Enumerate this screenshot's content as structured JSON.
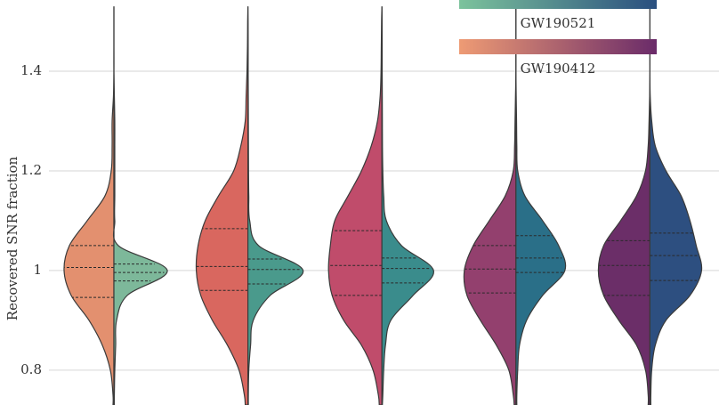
{
  "chart_data": {
    "type": "violin",
    "ylabel": "Recovered SNR fraction",
    "ylim": [
      0.73,
      1.543
    ],
    "yticks": [
      0.8,
      1.0,
      1.2,
      1.4
    ],
    "grid": true,
    "density_y": [
      0.73,
      0.75,
      0.8,
      0.85,
      0.9,
      0.95,
      1.0,
      1.05,
      1.1,
      1.15,
      1.2,
      1.25,
      1.3,
      1.35,
      1.4,
      1.45,
      1.5,
      1.53
    ],
    "series": [
      {
        "name": "GW190412",
        "side": "left",
        "colormap": [
          "#ee9b74",
          "#6a2b69"
        ],
        "colors": [
          "#e3906f",
          "#d9675f",
          "#c04c6b",
          "#93406e",
          "#6b2e68"
        ],
        "density": [
          [
            1,
            1,
            4,
            13,
            28,
            48,
            56,
            50,
            30,
            10,
            3,
            2,
            2,
            0.5,
            0,
            0,
            0,
            0
          ],
          [
            3,
            4,
            10,
            23,
            40,
            53,
            58,
            56,
            48,
            33,
            16,
            8,
            3,
            2,
            1,
            0.5,
            0.3,
            0
          ],
          [
            3,
            4,
            10,
            23,
            43,
            56,
            60,
            58,
            53,
            38,
            23,
            12,
            5,
            2,
            1,
            0.7,
            0.4,
            0
          ],
          [
            2,
            3,
            8,
            22,
            40,
            55,
            58,
            48,
            30,
            12,
            3,
            1.5,
            1,
            0.5,
            0,
            0,
            0,
            0
          ],
          [
            2,
            2,
            5,
            15,
            35,
            52,
            58,
            52,
            33,
            15,
            5,
            2,
            1,
            0.3,
            0,
            0,
            0,
            0
          ]
        ],
        "quartiles": [
          [
            0.946,
            1.006,
            1.05
          ],
          [
            0.96,
            1.008,
            1.084
          ],
          [
            0.95,
            1.01,
            1.08
          ],
          [
            0.955,
            1.003,
            1.05
          ],
          [
            0.95,
            1.01,
            1.06
          ]
        ]
      },
      {
        "name": "GW190521",
        "side": "right",
        "colormap": [
          "#7cc39c",
          "#2a4f7f"
        ],
        "colors": [
          "#7db89a",
          "#4a9a8c",
          "#3a8c8c",
          "#2a6f88",
          "#2d4f80"
        ],
        "density": [
          [
            0.5,
            0.5,
            1,
            2,
            3,
            15,
            60,
            5,
            1,
            1,
            1,
            1,
            1,
            0.5,
            0,
            0,
            0,
            0
          ],
          [
            0.5,
            0.5,
            1,
            3,
            6,
            25,
            62,
            12,
            2,
            1,
            0.7,
            0.6,
            0.5,
            0.4,
            0.3,
            0.3,
            0.2,
            0
          ],
          [
            0.5,
            1,
            2,
            4,
            10,
            35,
            58,
            22,
            5,
            2,
            1,
            0.6,
            0.5,
            0.4,
            0.3,
            0.3,
            0.2,
            0
          ],
          [
            1,
            1,
            2,
            4,
            12,
            30,
            55,
            48,
            30,
            10,
            2,
            1,
            0.7,
            0.3,
            0,
            0,
            0,
            0
          ],
          [
            1,
            1,
            2,
            6,
            18,
            45,
            58,
            52,
            45,
            35,
            18,
            6,
            2,
            0.3,
            0,
            0,
            0,
            0
          ]
        ],
        "quartiles": [
          [
            0.979,
            0.996,
            1.013
          ],
          [
            0.973,
            1.002,
            1.023
          ],
          [
            0.975,
            1.004,
            1.025
          ],
          [
            0.996,
            1.025,
            1.07
          ],
          [
            0.98,
            1.03,
            1.075
          ]
        ]
      }
    ]
  }
}
